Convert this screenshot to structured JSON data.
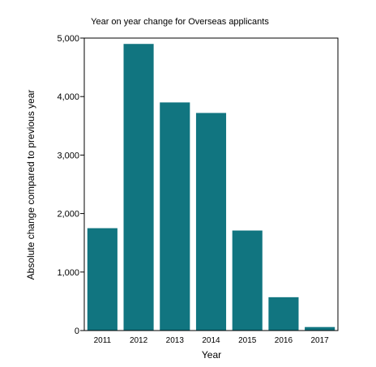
{
  "chart_data": {
    "type": "bar",
    "title": "Year on year change for Overseas applicants",
    "xlabel": "Year",
    "ylabel": "Absolute change compared to previous year",
    "categories": [
      "2011",
      "2012",
      "2013",
      "2014",
      "2015",
      "2016",
      "2017"
    ],
    "values": [
      1750,
      4900,
      3900,
      3720,
      1710,
      570,
      60
    ],
    "ylim": [
      0,
      5000
    ],
    "yticks": [
      0,
      1000,
      2000,
      3000,
      4000,
      5000
    ],
    "ytick_labels": [
      "0",
      "1,000",
      "2,000",
      "3,000",
      "4,000",
      "5,000"
    ],
    "grid": false,
    "legend": "none",
    "bar_color": "#117580"
  }
}
